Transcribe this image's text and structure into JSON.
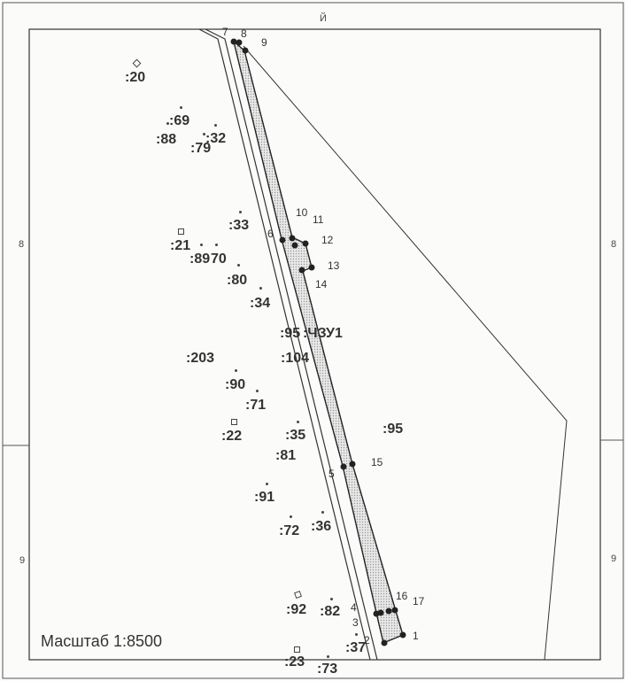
{
  "top_mark": "Й",
  "edge_numbers": {
    "left_upper": "8",
    "right_upper": "8",
    "left_lower": "9",
    "right_lower": "9"
  },
  "scale_label": "Масштаб 1:8500",
  "parcel_labels": {
    "p20": ":20",
    "p69": ":69",
    "p88": ":88",
    "p32": ":32",
    "p79": ":79",
    "p33": ":33",
    "p21": ":21",
    "p89": ":89",
    "p70": "70",
    "p80": ":80",
    "p34": ":34",
    "p95a": ":95",
    "czu1": ":ЧЗУ1",
    "p203": ":203",
    "p104": ":104",
    "p90": ":90",
    "p71": ":71",
    "p22": ":22",
    "p35": ":35",
    "p95b": ":95",
    "p81": ":81",
    "p91": ":91",
    "p72": ":72",
    "p36": ":36",
    "p92": ":92",
    "p82": ":82",
    "p37": ":37",
    "p23": ":23",
    "p73": ":73"
  },
  "point_numbers": {
    "n1": "1",
    "n2": "2",
    "n3": "3",
    "n4": "4",
    "n5": "5",
    "n6": "6",
    "n7": "7",
    "n8": "8",
    "n9": "9",
    "n10": "10",
    "n11": "11",
    "n12": "12",
    "n13": "13",
    "n14": "14",
    "n15": "15",
    "n16": "16",
    "n17": "17"
  }
}
